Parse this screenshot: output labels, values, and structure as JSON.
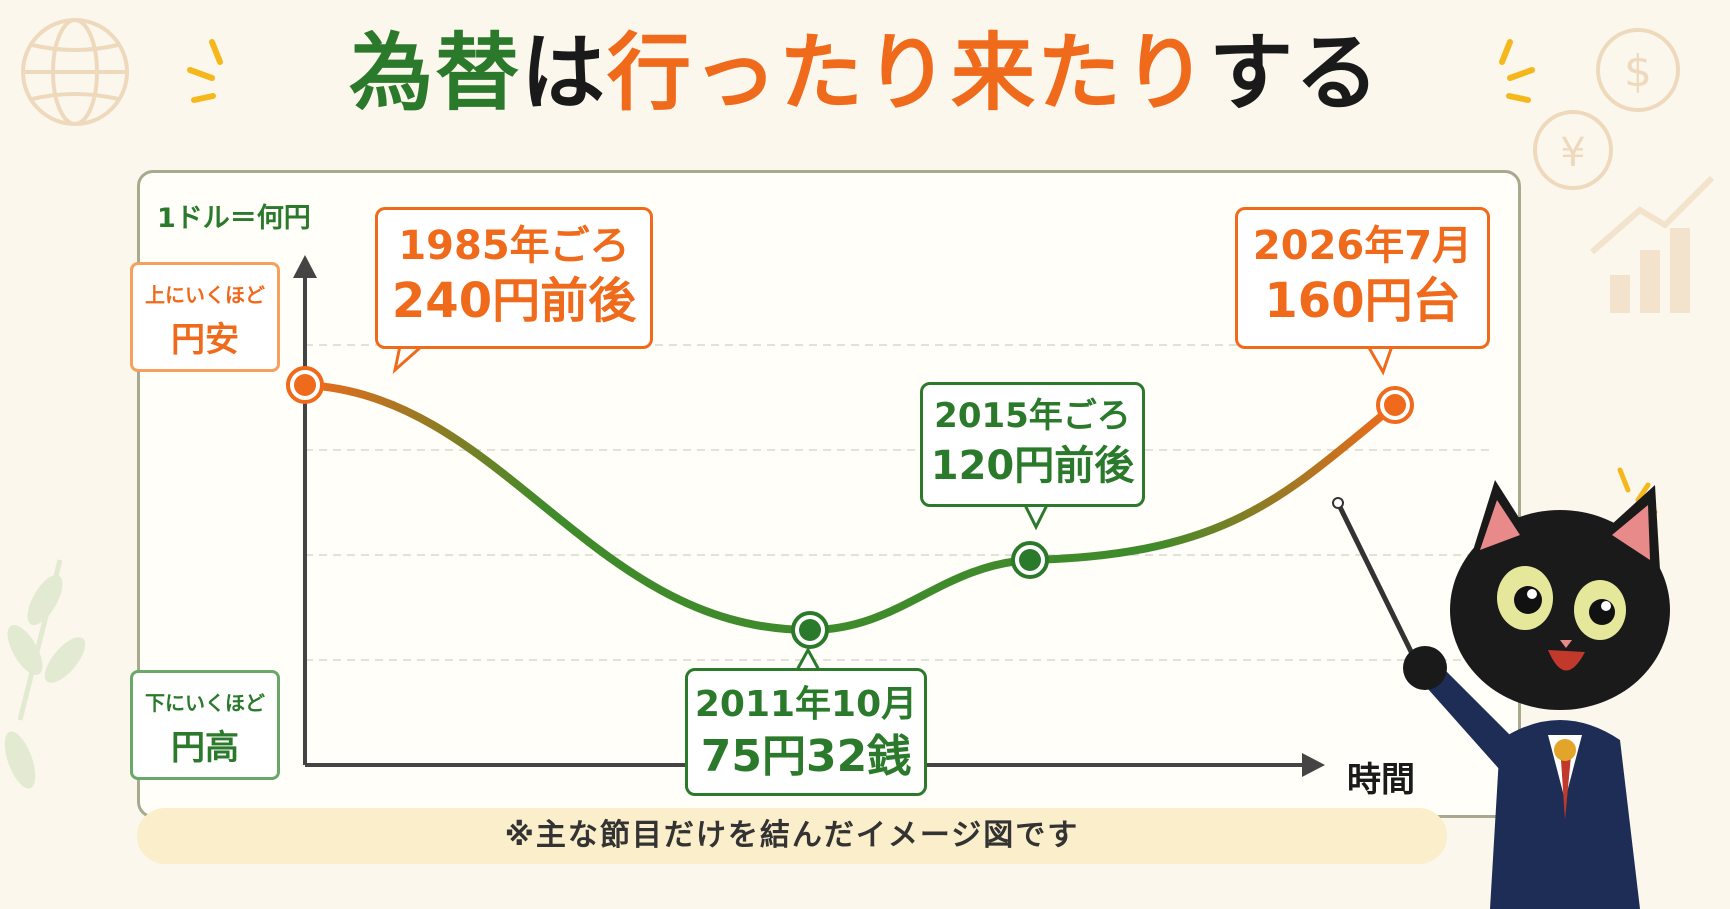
{
  "title": {
    "part1": "為替",
    "part2": "は",
    "part3": "行ったり来たり",
    "part4": "する"
  },
  "chart_data": {
    "type": "line",
    "ylabel": "1ドル＝何円",
    "xlabel": "時間",
    "y_up_label": {
      "small": "上にいくほど",
      "big": "円安"
    },
    "y_down_label": {
      "small": "下にいくほど",
      "big": "円高"
    },
    "points": [
      {
        "when": "1985年ごろ",
        "value_text": "240円前後",
        "y": 240
      },
      {
        "when": "2011年10月",
        "value_text": "75円32銭",
        "y": 75.32
      },
      {
        "when": "2015年ごろ",
        "value_text": "120円前後",
        "y": 120
      },
      {
        "when": "2026年7月",
        "value_text": "160円台",
        "y": 160
      }
    ],
    "grid": true
  },
  "note": "※主な節目だけを結んだイメージ図です",
  "colors": {
    "orange": "#f06a1c",
    "green": "#2b7a2b",
    "background": "#fbf7ec"
  },
  "icons": [
    "globe-icon",
    "dollar-coin-icon",
    "yen-coin-icon",
    "bar-chart-icon",
    "leaf-icon",
    "sparkle-icon",
    "black-cat-mascot"
  ]
}
